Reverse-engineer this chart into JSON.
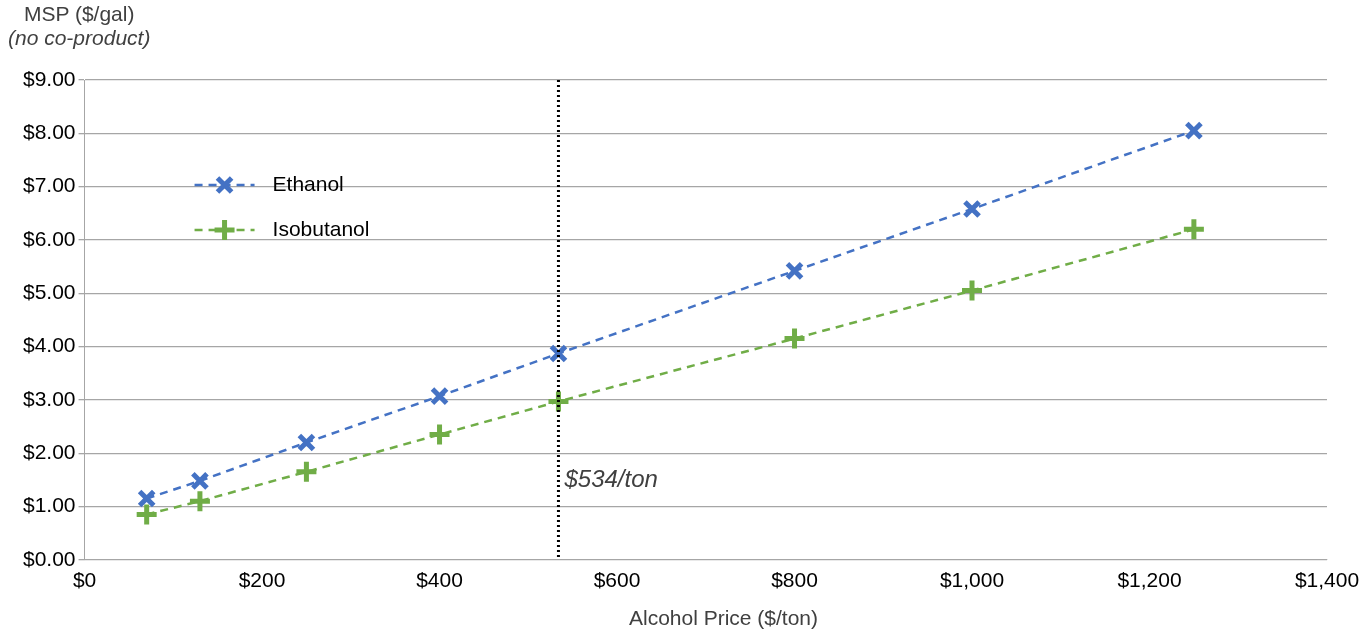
{
  "chart_data": {
    "type": "line",
    "xlabel": "Alcohol Price ($/ton)",
    "ylabel": "MSP ($/gal)\n(no co-product)",
    "series": [
      {
        "name": "Ethanol",
        "color": "#4472c4",
        "marker": "x",
        "line_style": "dashed",
        "x": [
          70,
          130,
          250,
          400,
          534,
          800,
          1000,
          1250
        ],
        "values": [
          1.15,
          1.48,
          2.2,
          3.07,
          3.87,
          5.42,
          6.58,
          8.05
        ]
      },
      {
        "name": "Isobutanol",
        "color": "#70ad47",
        "marker": "cross",
        "line_style": "dashed",
        "x": [
          70,
          130,
          250,
          400,
          534,
          800,
          1000,
          1250
        ],
        "values": [
          0.85,
          1.1,
          1.65,
          2.35,
          2.97,
          4.15,
          5.05,
          6.2
        ]
      }
    ],
    "xlim": [
      0,
      1400
    ],
    "xticks": [
      {
        "value": 0,
        "label": "$0"
      },
      {
        "value": 200,
        "label": "$200"
      },
      {
        "value": 400,
        "label": "$400"
      },
      {
        "value": 600,
        "label": "$600"
      },
      {
        "value": 800,
        "label": "$800"
      },
      {
        "value": 1000,
        "label": "$1,000"
      },
      {
        "value": 1200,
        "label": "$1,200"
      },
      {
        "value": 1400,
        "label": "$1,400"
      }
    ],
    "ylim": [
      0,
      9
    ],
    "yticks": [
      {
        "value": 0,
        "label": "$0.00"
      },
      {
        "value": 1,
        "label": "$1.00"
      },
      {
        "value": 2,
        "label": "$2.00"
      },
      {
        "value": 3,
        "label": "$3.00"
      },
      {
        "value": 4,
        "label": "$4.00"
      },
      {
        "value": 5,
        "label": "$5.00"
      },
      {
        "value": 6,
        "label": "$6.00"
      },
      {
        "value": 7,
        "label": "$7.00"
      },
      {
        "value": 8,
        "label": "$8.00"
      },
      {
        "value": 9,
        "label": "$9.00"
      }
    ],
    "ref_lines": [
      {
        "axis": "x",
        "value": 534,
        "label": "$534/ton",
        "color": "#000000",
        "line_style": "dotted"
      }
    ],
    "grid": "y",
    "legend": "top left"
  }
}
